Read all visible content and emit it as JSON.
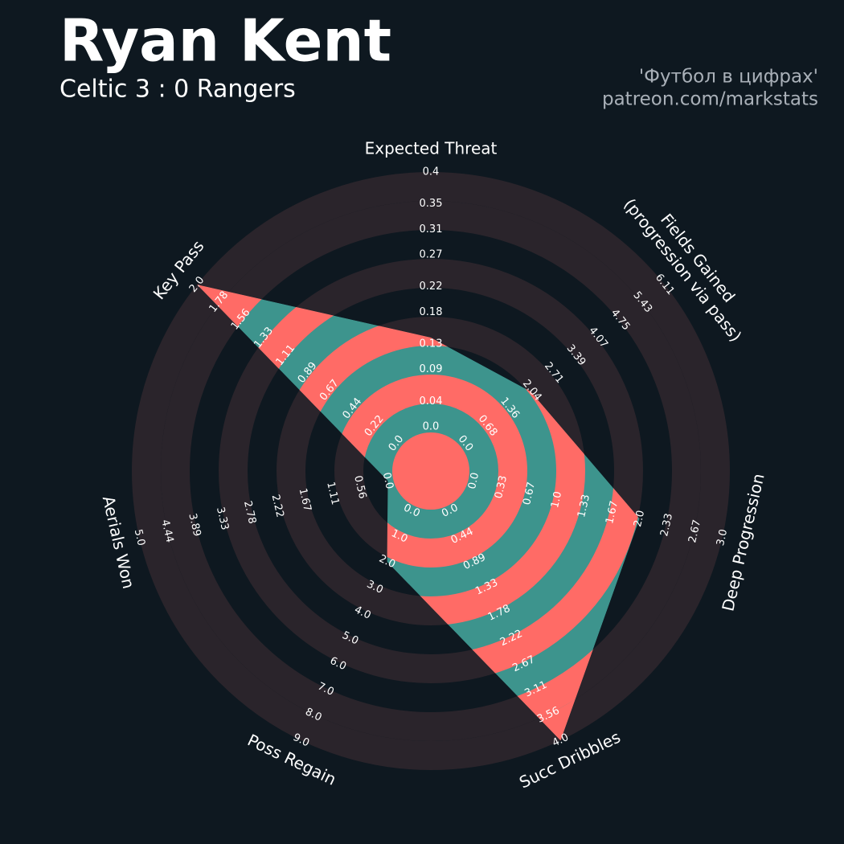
{
  "chart_data": {
    "type": "radar",
    "title": "Ryan Kent",
    "subtitle": "Celtic 3 : 0 Rangers",
    "credits": [
      "'Футбол в цифрах'",
      "patreon.com/markstats"
    ],
    "color": "#3d948d",
    "alt_color": "#ff6b66",
    "ring_color": "#2a242b",
    "axes": [
      {
        "name": "Expected Threat",
        "lim": [
          0,
          0.4
        ],
        "value": 0.14,
        "ticks": [
          {
            "value": 0,
            "label": "0.0"
          },
          0.04,
          0.09,
          0.13,
          0.18,
          0.22,
          0.27,
          0.31,
          0.35,
          0.4
        ]
      },
      {
        "name": "Fields Gained\n(progression via pass)",
        "lim": [
          0,
          6.11
        ],
        "value": 2.0,
        "ticks": [
          {
            "value": 0,
            "label": "0.0"
          },
          0.68,
          1.36,
          2.04,
          2.71,
          3.39,
          4.07,
          4.75,
          5.43,
          6.11
        ]
      },
      {
        "name": "Deep Progression",
        "lim": [
          0,
          3
        ],
        "value": 2.0,
        "ticks": [
          {
            "value": 0,
            "label": "0.0"
          },
          0.33,
          0.67,
          {
            "value": 1,
            "label": "1.0"
          },
          1.33,
          1.67,
          {
            "value": 2,
            "label": "2.0"
          },
          2.33,
          2.67,
          {
            "value": 3,
            "label": "3.0"
          }
        ]
      },
      {
        "name": "Succ Dribbles",
        "lim": [
          0,
          4
        ],
        "value": 4.0,
        "ticks": [
          {
            "value": 0,
            "label": "0.0"
          },
          0.44,
          0.89,
          1.33,
          1.78,
          2.22,
          2.67,
          3.11,
          3.56,
          {
            "value": 4,
            "label": "4.0"
          }
        ]
      },
      {
        "name": "Poss Regain",
        "lim": [
          0,
          9
        ],
        "value": 2.0,
        "ticks": [
          {
            "value": 0,
            "label": "0.0"
          },
          {
            "value": 1,
            "label": "1.0"
          },
          {
            "value": 2,
            "label": "2.0"
          },
          {
            "value": 3,
            "label": "3.0"
          },
          {
            "value": 4,
            "label": "4.0"
          },
          {
            "value": 5,
            "label": "5.0"
          },
          {
            "value": 6,
            "label": "6.0"
          },
          {
            "value": 7,
            "label": "7.0"
          },
          {
            "value": 8,
            "label": "8.0"
          },
          {
            "value": 9,
            "label": "9.0"
          }
        ]
      },
      {
        "name": "Aerials Won",
        "lim": [
          0,
          5
        ],
        "value": 0.0,
        "ticks": [
          {
            "value": 0,
            "label": "0.0"
          },
          0.56,
          1.11,
          1.67,
          2.22,
          2.78,
          3.33,
          3.89,
          4.44,
          {
            "value": 5,
            "label": "5.0"
          }
        ]
      },
      {
        "name": "Key Pass",
        "lim": [
          0,
          2
        ],
        "value": 2.0,
        "ticks": [
          {
            "value": 0,
            "label": "0.0"
          },
          0.22,
          0.44,
          0.67,
          0.89,
          1.11,
          1.33,
          1.56,
          1.78,
          {
            "value": 2,
            "label": "2.0"
          }
        ]
      }
    ]
  }
}
